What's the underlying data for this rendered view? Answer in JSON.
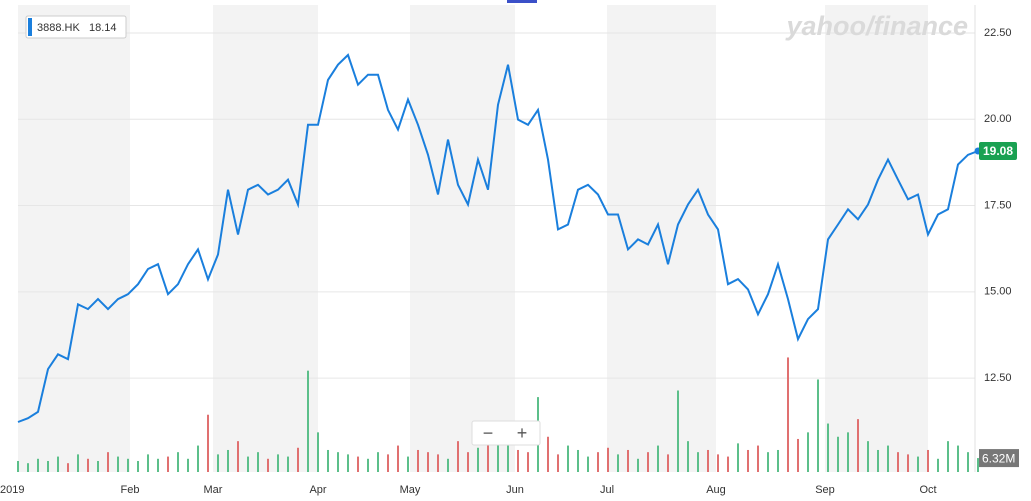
{
  "chart_data": {
    "type": "line",
    "watermark": "yahoo/finance",
    "hover_value": 18.14,
    "zoom_controls": [
      "−",
      "+"
    ],
    "xlim": [
      0,
      96
    ],
    "xticks": [
      {
        "value": 0,
        "label": "2019"
      },
      {
        "value": 11.2,
        "label": "Feb"
      },
      {
        "value": 19.5,
        "label": "Mar"
      },
      {
        "value": 30,
        "label": "Apr"
      },
      {
        "value": 39.2,
        "label": "May"
      },
      {
        "value": 49.7,
        "label": "Jun"
      },
      {
        "value": 58.9,
        "label": "Jul"
      },
      {
        "value": 69.8,
        "label": "Aug"
      },
      {
        "value": 80.7,
        "label": "Sep"
      },
      {
        "value": 91,
        "label": "Oct"
      }
    ],
    "ylim": [
      9.78,
      23.31
    ],
    "yticks": [
      {
        "value": 12.5,
        "label": "12.50"
      },
      {
        "value": 15,
        "label": "15.00"
      },
      {
        "value": 17.5,
        "label": "17.50"
      },
      {
        "value": 20,
        "label": "20.00"
      },
      {
        "value": 22.5,
        "label": "22.50"
      }
    ],
    "grid": true,
    "series": [
      {
        "name": "3888.HK",
        "color": "#1a7fdd",
        "values": [
          11.23,
          11.34,
          11.52,
          12.76,
          13.19,
          13.05,
          14.64,
          14.5,
          14.79,
          14.5,
          14.79,
          14.93,
          15.22,
          15.66,
          15.8,
          14.93,
          15.22,
          15.8,
          16.23,
          15.36,
          16.08,
          17.96,
          16.66,
          17.96,
          18.1,
          17.82,
          17.96,
          18.25,
          17.53,
          19.84,
          19.84,
          21.14,
          21.58,
          21.86,
          21.0,
          21.29,
          21.29,
          20.27,
          19.7,
          20.57,
          19.84,
          18.97,
          17.82,
          19.41,
          18.1,
          17.53,
          18.83,
          17.96,
          20.42,
          21.58,
          19.99,
          19.84,
          20.27,
          18.83,
          16.81,
          16.95,
          17.96,
          18.1,
          17.82,
          17.24,
          17.24,
          16.23,
          16.52,
          16.37,
          16.95,
          15.8,
          16.95,
          17.53,
          17.96,
          17.24,
          16.81,
          15.22,
          15.37,
          15.07,
          14.35,
          14.93,
          15.8,
          14.79,
          13.63,
          14.21,
          14.5,
          16.52,
          16.95,
          17.39,
          17.1,
          17.53,
          18.25,
          18.83,
          18.25,
          17.68,
          17.82,
          16.66,
          17.24,
          17.39,
          18.69,
          18.97,
          19.08
        ]
      }
    ],
    "last_value_color": "#1aa152",
    "volume": {
      "ylim": [
        0,
        212
      ],
      "color_up": "#5cbf8a",
      "color_down": "#e07070",
      "last_label": "6.32M",
      "values": [
        5,
        4,
        6,
        5,
        7,
        4,
        8,
        6,
        5,
        9,
        7,
        6,
        5,
        8,
        6,
        7,
        9,
        6,
        12,
        26,
        8,
        10,
        14,
        7,
        9,
        6,
        8,
        7,
        11,
        46,
        18,
        10,
        9,
        8,
        7,
        6,
        9,
        8,
        12,
        7,
        10,
        9,
        8,
        6,
        14,
        9,
        11,
        13,
        15,
        12,
        10,
        9,
        34,
        16,
        8,
        12,
        10,
        7,
        9,
        11,
        8,
        10,
        6,
        9,
        12,
        8,
        37,
        14,
        9,
        10,
        8,
        7,
        13,
        10,
        12,
        9,
        10,
        52,
        15,
        18,
        42,
        22,
        16,
        18,
        24,
        14,
        10,
        12,
        9,
        8,
        7,
        10,
        6,
        14,
        12,
        9,
        6.32
      ]
    }
  }
}
